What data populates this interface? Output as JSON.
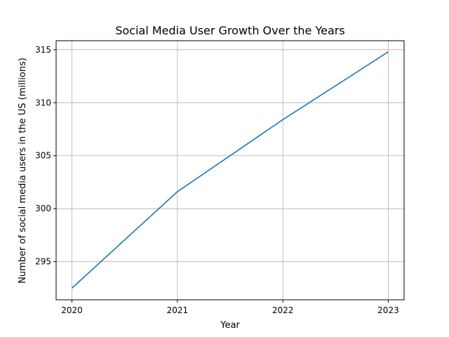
{
  "chart_data": {
    "type": "line",
    "title": "Social Media User Growth Over the Years",
    "xlabel": "Year",
    "ylabel": "Number of social media users in the US (millions)",
    "x": [
      2020,
      2021,
      2022,
      2023
    ],
    "x_tick_labels": [
      "2020",
      "2021",
      "2022",
      "2023"
    ],
    "y_ticks": [
      295,
      300,
      305,
      310,
      315
    ],
    "y_tick_labels": [
      "295",
      "300",
      "305",
      "310",
      "315"
    ],
    "xlim": [
      2019.85,
      2023.15
    ],
    "ylim": [
      291.4,
      315.85
    ],
    "series": [
      {
        "values": [
          292.5,
          301.6,
          308.4,
          314.8
        ]
      }
    ],
    "grid": true,
    "colors": {
      "series": "#1f77b4"
    }
  }
}
